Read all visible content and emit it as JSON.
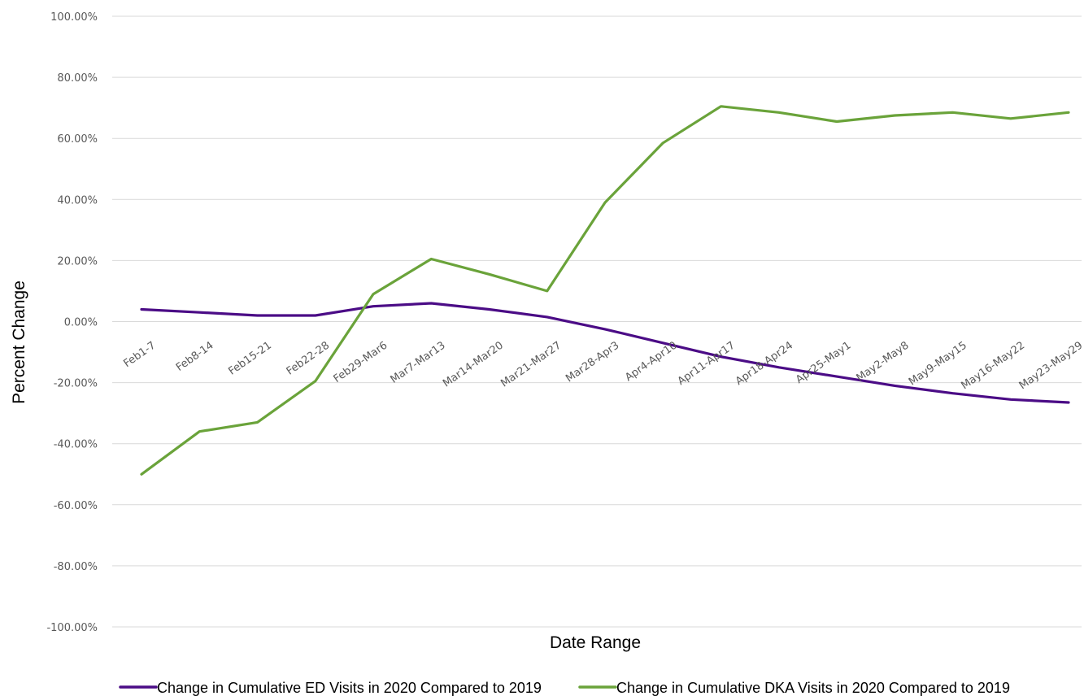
{
  "chart_data": {
    "type": "line",
    "title": "",
    "xlabel": "Date Range",
    "ylabel": "Percent Change",
    "ylim": [
      -100,
      100
    ],
    "y_tick_step": 20,
    "y_tick_format": "percent_2dp",
    "grid": true,
    "legend_position": "bottom",
    "categories": [
      "Feb1-7",
      "Feb8-14",
      "Feb15-21",
      "Feb22-28",
      "Feb29-Mar6",
      "Mar7-Mar13",
      "Mar14-Mar20",
      "Mar21-Mar27",
      "Mar28-Apr3",
      "Apr4-Apr10",
      "Apr11-Apr17",
      "Apr18-Apr24",
      "Apr25-May1",
      "May2-May8",
      "May9-May15",
      "May16-May22",
      "May23-May29"
    ],
    "series": [
      {
        "name": "Change in Cumulative ED Visits in 2020 Compared to 2019",
        "color": "#4b0c86",
        "values": [
          4.0,
          3.0,
          2.0,
          2.0,
          5.0,
          6.0,
          4.0,
          1.5,
          -2.5,
          -7.0,
          -11.5,
          -15.0,
          -18.0,
          -21.0,
          -23.5,
          -25.5,
          -26.5
        ]
      },
      {
        "name": "Change in Cumulative DKA Visits in 2020 Compared to 2019",
        "color": "#6aa33a",
        "values": [
          -50.0,
          -36.0,
          -33.0,
          -19.5,
          9.0,
          20.5,
          15.5,
          10.0,
          39.0,
          58.5,
          70.5,
          68.5,
          65.5,
          67.5,
          68.5,
          66.5,
          68.5
        ]
      }
    ]
  }
}
